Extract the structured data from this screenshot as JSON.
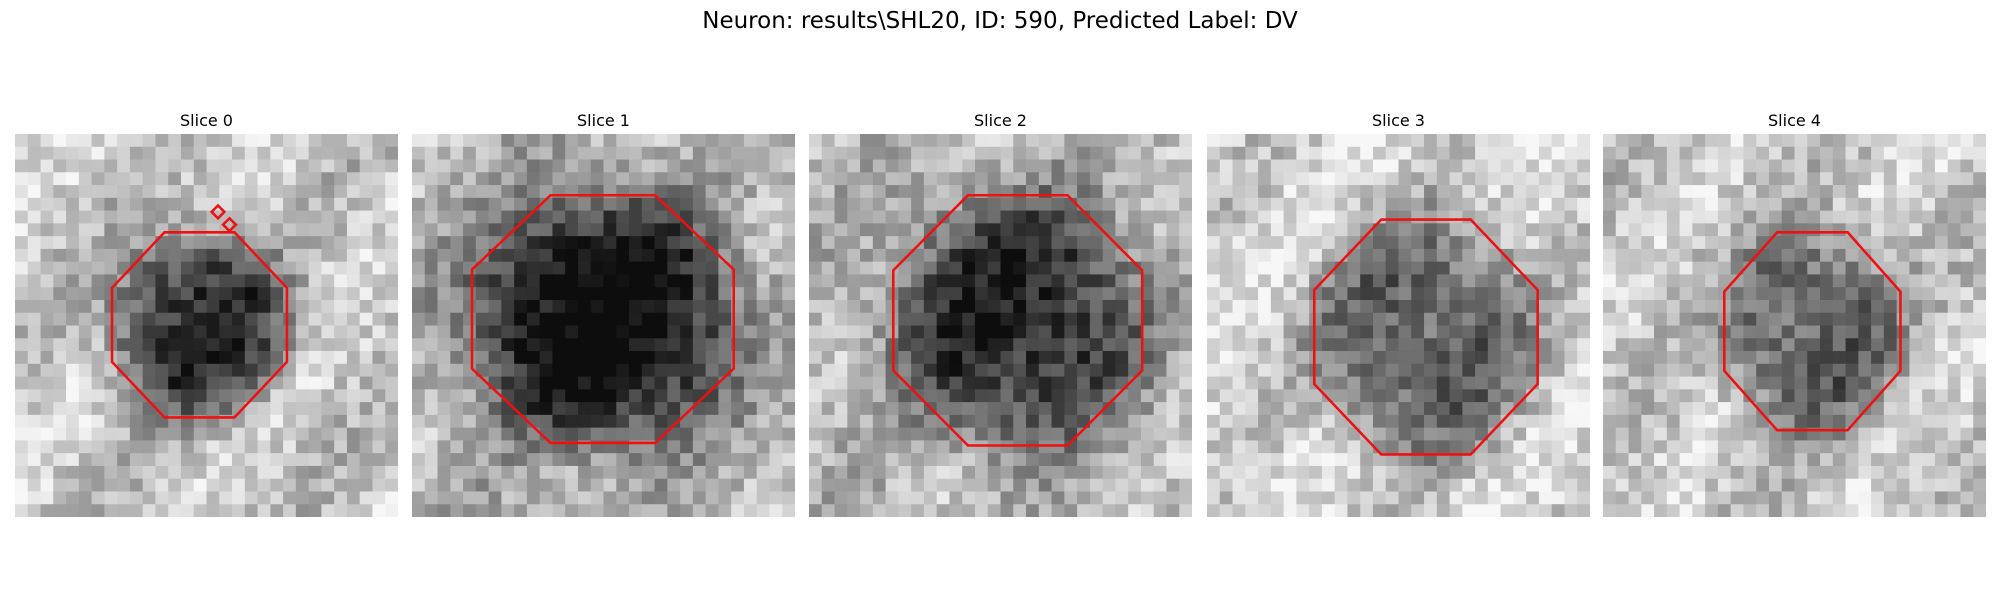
{
  "title": "Neuron: results\\SHL20, ID: 590, Predicted Label: DV",
  "panels": [
    {
      "title": "Slice 0"
    },
    {
      "title": "Slice 1"
    },
    {
      "title": "Slice 2"
    },
    {
      "title": "Slice 3"
    },
    {
      "title": "Slice 4"
    }
  ]
}
